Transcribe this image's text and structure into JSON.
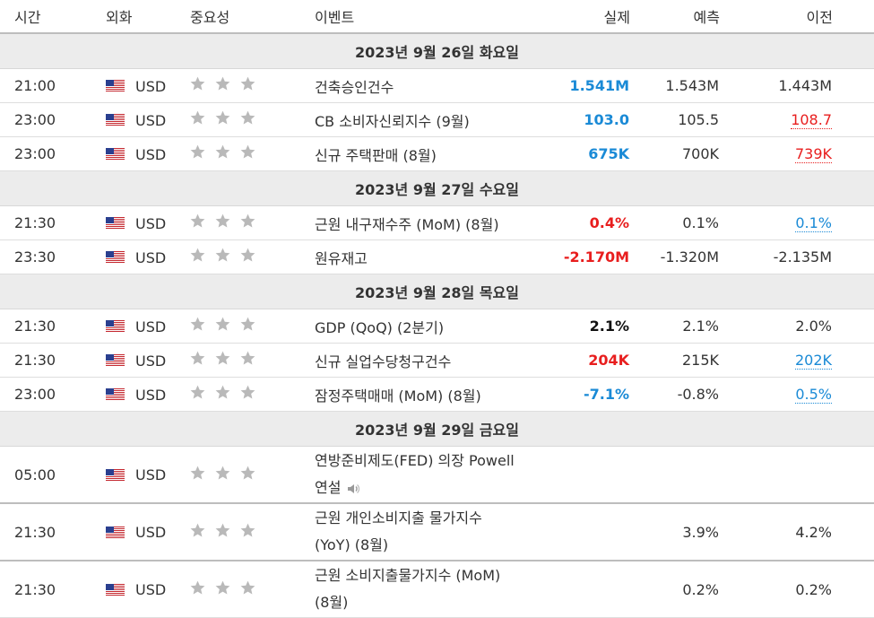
{
  "headers": {
    "time": "시간",
    "currency": "외화",
    "importance": "중요성",
    "event": "이벤트",
    "actual": "실제",
    "forecast": "예측",
    "previous": "이전"
  },
  "colors": {
    "actual_up": "#1a8ad6",
    "actual_down": "#e81e1e",
    "neutral": "#111111",
    "star": "#b9b9b9",
    "date_bg": "#ececec"
  },
  "days": [
    {
      "date": "2023년 9월 26일 화요일",
      "events": [
        {
          "time": "21:00",
          "currency": "USD",
          "importance_stars": 3,
          "event": "건축승인건수",
          "actual": "1.541M",
          "actual_color": "blue",
          "forecast": "1.543M",
          "previous": "1.443M",
          "previous_color": "plain"
        },
        {
          "time": "23:00",
          "currency": "USD",
          "importance_stars": 3,
          "event": "CB 소비자신뢰지수 (9월)",
          "actual": "103.0",
          "actual_color": "blue",
          "forecast": "105.5",
          "previous": "108.7",
          "previous_color": "red"
        },
        {
          "time": "23:00",
          "currency": "USD",
          "importance_stars": 3,
          "event": "신규 주택판매 (8월)",
          "actual": "675K",
          "actual_color": "blue",
          "forecast": "700K",
          "previous": "739K",
          "previous_color": "red"
        }
      ]
    },
    {
      "date": "2023년 9월 27일 수요일",
      "events": [
        {
          "time": "21:30",
          "currency": "USD",
          "importance_stars": 3,
          "event": "근원 내구재수주 (MoM) (8월)",
          "actual": "0.4%",
          "actual_color": "red",
          "forecast": "0.1%",
          "previous": "0.1%",
          "previous_color": "blue"
        },
        {
          "time": "23:30",
          "currency": "USD",
          "importance_stars": 3,
          "event": "원유재고",
          "actual": "-2.170M",
          "actual_color": "red",
          "forecast": "-1.320M",
          "previous": "-2.135M",
          "previous_color": "plain"
        }
      ]
    },
    {
      "date": "2023년 9월 28일 목요일",
      "events": [
        {
          "time": "21:30",
          "currency": "USD",
          "importance_stars": 3,
          "event": "GDP (QoQ) (2분기)",
          "actual": "2.1%",
          "actual_color": "black",
          "forecast": "2.1%",
          "previous": "2.0%",
          "previous_color": "plain"
        },
        {
          "time": "21:30",
          "currency": "USD",
          "importance_stars": 3,
          "event": "신규 실업수당청구건수",
          "actual": "204K",
          "actual_color": "red",
          "forecast": "215K",
          "previous": "202K",
          "previous_color": "blue"
        },
        {
          "time": "23:00",
          "currency": "USD",
          "importance_stars": 3,
          "event": "잠정주택매매 (MoM) (8월)",
          "actual": "-7.1%",
          "actual_color": "blue",
          "forecast": "-0.8%",
          "previous": "0.5%",
          "previous_color": "blue"
        }
      ]
    },
    {
      "date": "2023년 9월 29일 금요일",
      "events": [
        {
          "time": "05:00",
          "currency": "USD",
          "importance_stars": 3,
          "event_line1": "연방준비제도(FED) 의장 Powell",
          "event_line2": "연설",
          "has_speaker_icon": true,
          "actual": "",
          "forecast": "",
          "previous": ""
        },
        {
          "time": "21:30",
          "currency": "USD",
          "importance_stars": 3,
          "event_line1": "근원 개인소비지출 물가지수",
          "event_line2": "(YoY) (8월)",
          "actual": "",
          "forecast": "3.9%",
          "previous": "4.2%",
          "previous_color": "plain"
        },
        {
          "time": "21:30",
          "currency": "USD",
          "importance_stars": 3,
          "event_line1": "근원 소비지출물가지수 (MoM)",
          "event_line2": "(8월)",
          "actual": "",
          "forecast": "0.2%",
          "previous": "0.2%",
          "previous_color": "plain"
        }
      ]
    }
  ]
}
